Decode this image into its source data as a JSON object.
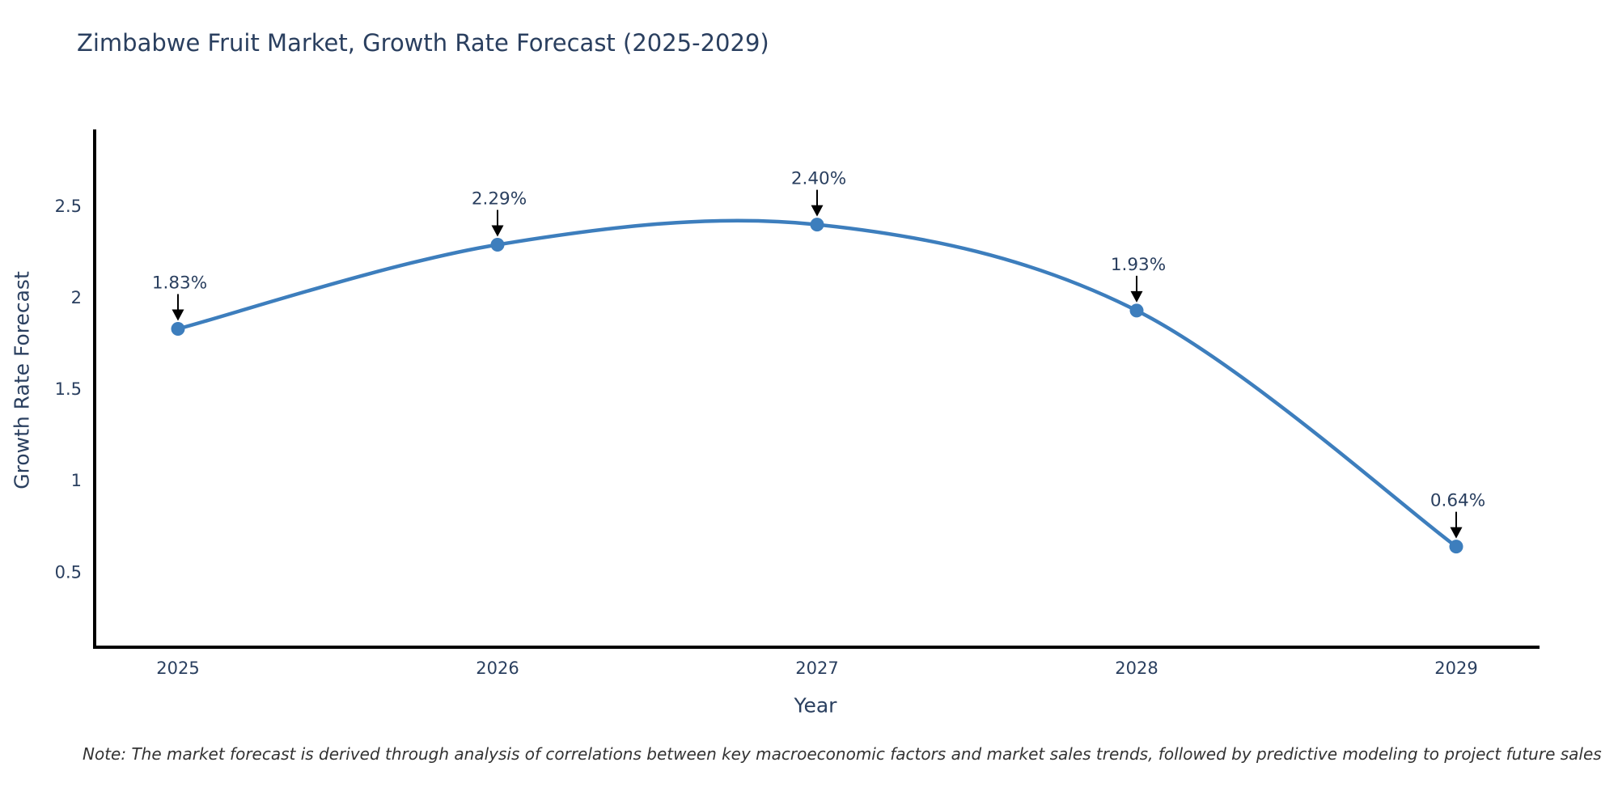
{
  "note": {
    "text": "Note: The market forecast is derived through analysis of correlations between key macroeconomic factors and market sales trends, followed by predictive modeling to project future sales"
  },
  "colors": {
    "line": "#3d7ebd",
    "marker": "#3d7ebd",
    "title_text": "#2a3f5f",
    "tick_text": "#2a3f5f",
    "annotation_text": "#2a3f5f",
    "annotation_arrow": "#000000",
    "axis_line": "#000000",
    "note_text": "#333333",
    "background": "#ffffff"
  },
  "chart_data": {
    "type": "line",
    "title": "Zimbabwe Fruit Market, Growth Rate Forecast (2025-2029)",
    "categories": [
      "2025",
      "2026",
      "2027",
      "2028",
      "2029"
    ],
    "values": [
      1.83,
      2.29,
      2.4,
      1.93,
      0.64
    ],
    "point_labels": [
      "1.83%",
      "2.29%",
      "2.40%",
      "1.93%",
      "0.64%"
    ],
    "xlabel": "Year",
    "ylabel": "Growth Rate Forecast",
    "yticks": [
      0.5,
      1,
      1.5,
      2,
      2.5
    ],
    "ylim": [
      0.09,
      2.92
    ],
    "line_shape": "spline",
    "grid": false,
    "legend_position": "none",
    "annotation_arrows": true
  }
}
